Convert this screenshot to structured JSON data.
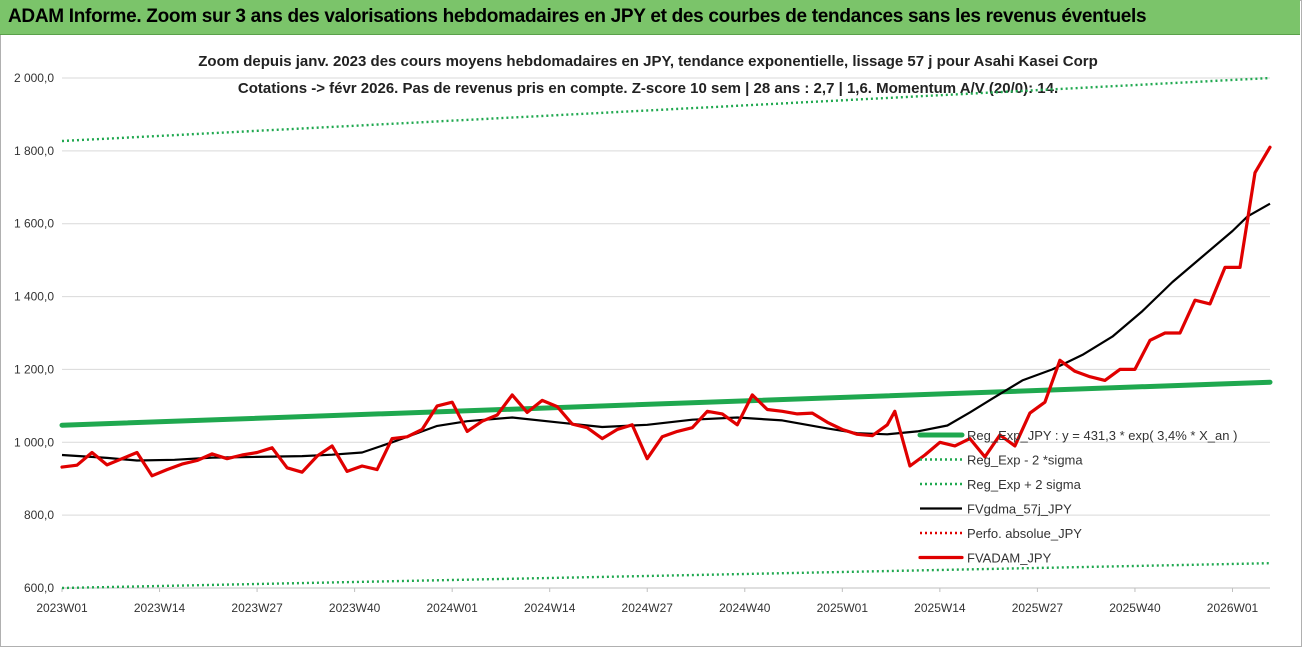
{
  "header": {
    "title": "ADAM Informe. Zoom sur 3 ans des valorisations hebdomadaires en JPY et des courbes de tendances sans les revenus éventuels"
  },
  "chart_data": {
    "type": "line",
    "title": "Zoom depuis janv. 2023 des cours moyens hebdomadaires en JPY, tendance exponentielle, lissage 57 j pour Asahi Kasei Corp",
    "subtitle": "Cotations -> févr 2026. Pas de revenus pris en compte. Z-score 10 sem | 28 ans : 2,7 | 1,6. Momentum A/V (20/0): 14.",
    "xlabel": "",
    "ylabel": "",
    "ylim": [
      600,
      2000
    ],
    "yticks": [
      "2 000,0",
      "1 800,0",
      "1 600,0",
      "1 400,0",
      "1 200,0",
      "1 000,0",
      "800,0",
      "600,0"
    ],
    "xticks": [
      "2023W01",
      "2023W14",
      "2023W27",
      "2023W40",
      "2024W01",
      "2024W14",
      "2024W27",
      "2024W40",
      "2025W01",
      "2025W14",
      "2025W27",
      "2025W40",
      "2026W01"
    ],
    "x_range_weeks": [
      0,
      161
    ],
    "grid": "horizontal",
    "legend_placement": "lower-right",
    "series": [
      {
        "name": "Reg_Exp_JPY : y = 431,3 * exp( 3,4% *  X_an )",
        "style": "solid-thick",
        "color": "#1fa84f",
        "weeks": [
          0,
          161
        ],
        "values": [
          1047,
          1165
        ]
      },
      {
        "name": "Reg_Exp - 2 *sigma",
        "style": "dotted",
        "color": "#1fa84f",
        "weeks": [
          0,
          161
        ],
        "values": [
          600,
          668
        ]
      },
      {
        "name": "Reg_Exp + 2 sigma",
        "style": "dotted",
        "color": "#1fa84f",
        "weeks": [
          0,
          161
        ],
        "values": [
          1827,
          2000
        ]
      },
      {
        "name": "FVgdma_57j_JPY",
        "style": "solid",
        "color": "#000000",
        "weeks": [
          0,
          6,
          10,
          15,
          20,
          26,
          32,
          36,
          40,
          44,
          48,
          50,
          54,
          60,
          66,
          72,
          78,
          84,
          90,
          96,
          102,
          106,
          110,
          114,
          118,
          121,
          124,
          128,
          132,
          136,
          140,
          144,
          148,
          152,
          156,
          158,
          161
        ],
        "values": [
          965,
          957,
          950,
          952,
          958,
          960,
          962,
          966,
          972,
          1000,
          1030,
          1045,
          1058,
          1068,
          1055,
          1042,
          1048,
          1062,
          1068,
          1060,
          1038,
          1025,
          1022,
          1030,
          1046,
          1082,
          1120,
          1170,
          1200,
          1240,
          1290,
          1360,
          1440,
          1510,
          1580,
          1620,
          1655
        ]
      },
      {
        "name": "Perfo. absolue_JPY",
        "style": "dotted",
        "color": "#e00000",
        "weeks": [],
        "values": []
      },
      {
        "name": "FVADAM_JPY",
        "style": "solid-thick",
        "color": "#e00000",
        "weeks": [
          0,
          2,
          4,
          6,
          8,
          10,
          12,
          14,
          16,
          18,
          20,
          22,
          24,
          26,
          28,
          30,
          32,
          34,
          36,
          38,
          40,
          42,
          44,
          46,
          48,
          50,
          52,
          54,
          56,
          58,
          60,
          62,
          64,
          66,
          68,
          70,
          72,
          74,
          76,
          78,
          80,
          82,
          84,
          86,
          88,
          90,
          92,
          94,
          96,
          98,
          100,
          102,
          104,
          106,
          108,
          110,
          111,
          113,
          115,
          117,
          119,
          121,
          123,
          125,
          127,
          129,
          131,
          133,
          135,
          137,
          139,
          141,
          143,
          145,
          147,
          149,
          151,
          153,
          155,
          157,
          159,
          161
        ],
        "values": [
          932,
          937,
          972,
          938,
          955,
          972,
          908,
          925,
          940,
          950,
          968,
          955,
          965,
          972,
          985,
          930,
          918,
          962,
          990,
          920,
          935,
          925,
          1010,
          1015,
          1035,
          1100,
          1110,
          1030,
          1058,
          1075,
          1130,
          1082,
          1115,
          1098,
          1050,
          1040,
          1010,
          1035,
          1048,
          955,
          1015,
          1030,
          1040,
          1085,
          1078,
          1048,
          1130,
          1090,
          1085,
          1078,
          1080,
          1055,
          1035,
          1022,
          1018,
          1048,
          1085,
          935,
          965,
          1000,
          990,
          1010,
          960,
          1020,
          990,
          1080,
          1110,
          1225,
          1195,
          1180,
          1170,
          1200,
          1200,
          1280,
          1300,
          1300,
          1390,
          1380,
          1480,
          1480,
          1740,
          1810
        ]
      }
    ]
  }
}
